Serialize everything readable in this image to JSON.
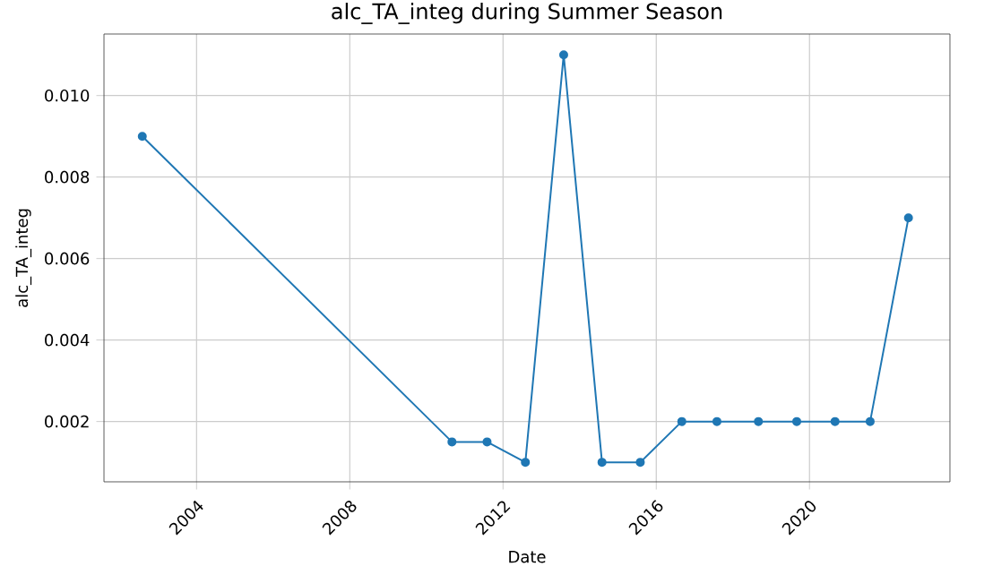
{
  "chart_data": {
    "type": "line",
    "title": "alc_TA_integ during Summer Season",
    "xlabel": "Date",
    "ylabel": "alc_TA_integ",
    "x": [
      "2002-08",
      "2010-09",
      "2011-08",
      "2012-08",
      "2013-08",
      "2014-08",
      "2015-08",
      "2016-09",
      "2017-08",
      "2018-09",
      "2019-09",
      "2020-09",
      "2021-08",
      "2022-08"
    ],
    "series": [
      {
        "color": "#1f77b4",
        "values": [
          0.009,
          0.0015,
          0.0015,
          0.001,
          0.011,
          0.001,
          0.001,
          0.002,
          0.002,
          0.002,
          0.002,
          0.002,
          0.002,
          0.007
        ]
      }
    ],
    "xlim": [
      "2001-08",
      "2023-09"
    ],
    "xticks": [
      "2004",
      "2008",
      "2012",
      "2016",
      "2020"
    ],
    "ylim": [
      0.00052,
      0.01151
    ],
    "yticks": [
      0.002,
      0.004,
      0.006,
      0.008,
      {
        "value": 0.01,
        "label": "0.010"
      }
    ],
    "grid": true,
    "marker": "circle",
    "line_style": "solid"
  }
}
